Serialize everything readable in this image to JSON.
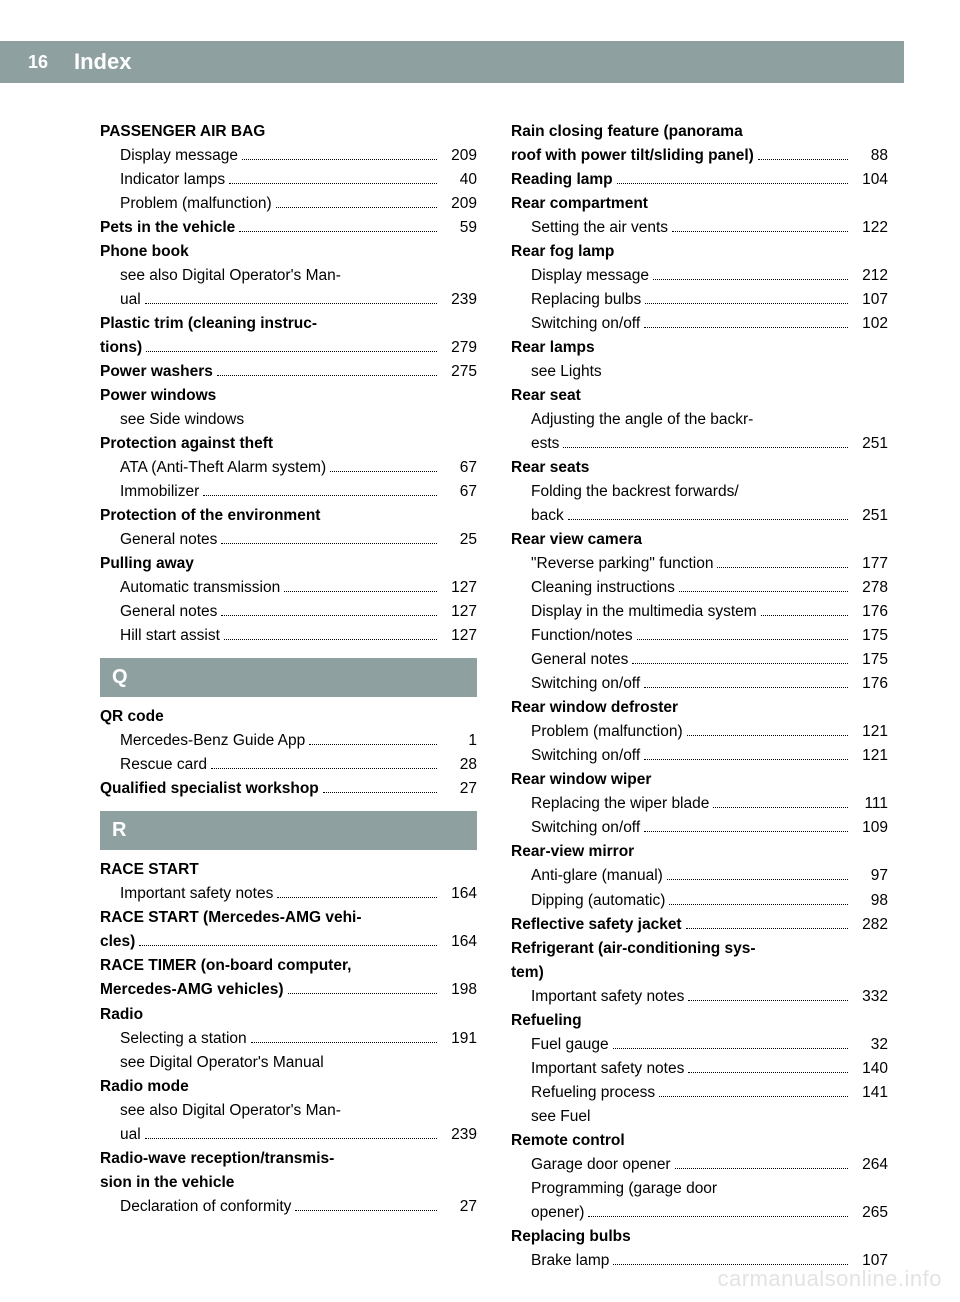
{
  "header": {
    "page_number": "16",
    "title": "Index"
  },
  "watermark": "carmanualsonline.info",
  "sections": {
    "Q": "Q",
    "R": "R"
  },
  "left": {
    "passenger_air_bag": {
      "title": "PASSENGER AIR BAG",
      "display_message": {
        "label": "Display message",
        "page": "209"
      },
      "indicator_lamps": {
        "label": "Indicator lamps",
        "page": "40"
      },
      "problem": {
        "label": "Problem (malfunction)",
        "page": "209"
      }
    },
    "pets": {
      "label": "Pets in the vehicle",
      "page": "59"
    },
    "phone_book": {
      "title": "Phone book",
      "see_digital": {
        "label1": "see also Digital Operator's Man-",
        "label2": "ual",
        "page": "239"
      }
    },
    "plastic_trim": {
      "label1": "Plastic trim (cleaning instruc-",
      "label2": "tions)",
      "page": "279"
    },
    "power_washers": {
      "label": "Power washers",
      "page": "275"
    },
    "power_windows": {
      "title": "Power windows",
      "see": "see Side windows"
    },
    "protection_theft": {
      "title": "Protection against theft",
      "ata": {
        "label": "ATA (Anti-Theft Alarm system)",
        "page": "67"
      },
      "immobilizer": {
        "label": "Immobilizer",
        "page": "67"
      }
    },
    "protection_env": {
      "title": "Protection of the environment",
      "general": {
        "label": "General notes",
        "page": "25"
      }
    },
    "pulling_away": {
      "title": "Pulling away",
      "auto_trans": {
        "label": "Automatic transmission",
        "page": "127"
      },
      "general": {
        "label": "General notes",
        "page": "127"
      },
      "hill": {
        "label": "Hill start assist",
        "page": "127"
      }
    },
    "qr_code": {
      "title": "QR code",
      "mb_guide": {
        "label": "Mercedes-Benz Guide App",
        "page": "1"
      },
      "rescue": {
        "label": "Rescue card",
        "page": "28"
      }
    },
    "qualified": {
      "label": "Qualified specialist workshop",
      "page": "27"
    },
    "race_start": {
      "title": "RACE START",
      "safety": {
        "label": "Important safety notes",
        "page": "164"
      }
    },
    "race_start_amg": {
      "label1": "RACE START (Mercedes-AMG vehi-",
      "label2": "cles)",
      "page": "164"
    },
    "race_timer": {
      "label1": "RACE TIMER (on-board computer,",
      "label2": "Mercedes-AMG vehicles)",
      "page": "198"
    },
    "radio": {
      "title": "Radio",
      "selecting": {
        "label": "Selecting a station",
        "page": "191"
      },
      "see": "see Digital Operator's Manual"
    },
    "radio_mode": {
      "title": "Radio mode",
      "see_digital": {
        "label1": "see also Digital Operator's Man-",
        "label2": "ual",
        "page": "239"
      }
    },
    "radio_wave": {
      "title1": "Radio-wave reception/transmis-",
      "title2": "sion in the vehicle",
      "decl": {
        "label": "Declaration of conformity",
        "page": "27"
      }
    }
  },
  "right": {
    "rain_closing": {
      "label1": "Rain closing feature (panorama",
      "label2": "roof with power tilt/sliding panel)",
      "page": "88"
    },
    "reading_lamp": {
      "label": "Reading lamp",
      "page": "104"
    },
    "rear_compartment": {
      "title": "Rear compartment",
      "air_vents": {
        "label": "Setting the air vents",
        "page": "122"
      }
    },
    "rear_fog_lamp": {
      "title": "Rear fog lamp",
      "display": {
        "label": "Display message",
        "page": "212"
      },
      "replacing": {
        "label": "Replacing bulbs",
        "page": "107"
      },
      "switching": {
        "label": "Switching on/off",
        "page": "102"
      }
    },
    "rear_lamps": {
      "title": "Rear lamps",
      "see": "see Lights"
    },
    "rear_seat": {
      "title": "Rear seat",
      "adjusting": {
        "label1": "Adjusting the angle of the backr-",
        "label2": "ests",
        "page": "251"
      }
    },
    "rear_seats": {
      "title": "Rear seats",
      "folding": {
        "label1": "Folding the backrest forwards/",
        "label2": "back",
        "page": "251"
      }
    },
    "rear_view_camera": {
      "title": "Rear view camera",
      "reverse": {
        "label": "\"Reverse parking\" function",
        "page": "177"
      },
      "cleaning": {
        "label": "Cleaning instructions",
        "page": "278"
      },
      "display_mm": {
        "label": "Display in the multimedia system",
        "page": "176"
      },
      "function": {
        "label": "Function/notes",
        "page": "175"
      },
      "general": {
        "label": "General notes",
        "page": "175"
      },
      "switching": {
        "label": "Switching on/off",
        "page": "176"
      }
    },
    "rear_window_defroster": {
      "title": "Rear window defroster",
      "problem": {
        "label": "Problem (malfunction)",
        "page": "121"
      },
      "switching": {
        "label": "Switching on/off",
        "page": "121"
      }
    },
    "rear_window_wiper": {
      "title": "Rear window wiper",
      "replacing": {
        "label": "Replacing the wiper blade",
        "page": "111"
      },
      "switching": {
        "label": "Switching on/off",
        "page": "109"
      }
    },
    "rear_view_mirror": {
      "title": "Rear-view mirror",
      "anti_glare": {
        "label": "Anti-glare (manual)",
        "page": "97"
      },
      "dipping": {
        "label": "Dipping (automatic)",
        "page": "98"
      }
    },
    "reflective": {
      "label": "Reflective safety jacket",
      "page": "282"
    },
    "refrigerant": {
      "title1": "Refrigerant (air-conditioning sys-",
      "title2": "tem)",
      "safety": {
        "label": "Important safety notes",
        "page": "332"
      }
    },
    "refueling": {
      "title": "Refueling",
      "gauge": {
        "label": "Fuel gauge",
        "page": "32"
      },
      "safety": {
        "label": "Important safety notes",
        "page": "140"
      },
      "process": {
        "label": "Refueling process",
        "page": "141"
      },
      "see": "see Fuel"
    },
    "remote_control": {
      "title": "Remote control",
      "garage": {
        "label": "Garage door opener",
        "page": "264"
      },
      "programming": {
        "label1": "Programming (garage door",
        "label2": "opener)",
        "page": "265"
      }
    },
    "replacing_bulbs": {
      "title": "Replacing bulbs",
      "brake": {
        "label": "Brake lamp",
        "page": "107"
      }
    }
  }
}
